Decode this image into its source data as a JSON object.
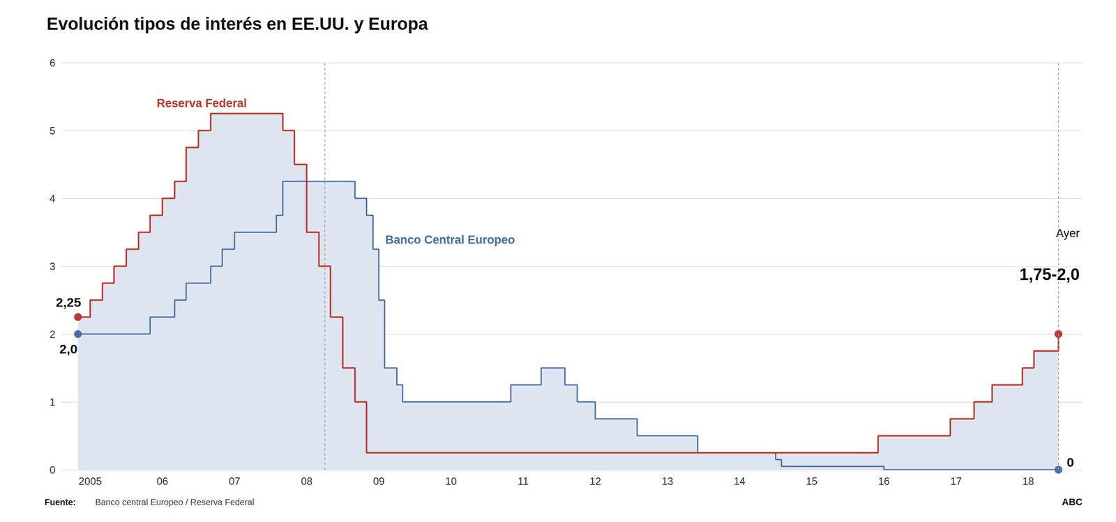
{
  "chart_data": {
    "type": "line",
    "title": "Evolución tipos de interés en EE.UU. y Europa",
    "series": [
      {
        "name": "Reserva Federal",
        "color": "#c0392b",
        "type": "step",
        "marker": "circle",
        "x": [
          2004.83,
          2005.0,
          2005.17,
          2005.33,
          2005.5,
          2005.67,
          2005.83,
          2006.0,
          2006.17,
          2006.33,
          2006.5,
          2006.67,
          2007.67,
          2007.83,
          2008.0,
          2008.17,
          2008.33,
          2008.5,
          2008.67,
          2008.83,
          2015.92,
          2016.92,
          2017.25,
          2017.5,
          2017.92,
          2018.08,
          2018.42
        ],
        "values": [
          2.25,
          2.5,
          2.75,
          3.0,
          3.25,
          3.5,
          3.75,
          4.0,
          4.25,
          4.75,
          5.0,
          5.25,
          5.0,
          4.5,
          3.5,
          3.0,
          2.25,
          1.5,
          1.0,
          0.25,
          0.5,
          0.75,
          1.0,
          1.25,
          1.5,
          1.75,
          2.0
        ],
        "value_labels": [
          "2,25",
          null,
          null,
          null,
          null,
          null,
          null,
          null,
          null,
          null,
          null,
          null,
          null,
          null,
          null,
          null,
          null,
          null,
          null,
          null,
          null,
          null,
          null,
          null,
          null,
          null,
          null
        ]
      },
      {
        "name": "Banco Central Europeo",
        "color": "#4a6fa5",
        "type": "step",
        "marker": "circle",
        "x": [
          2004.83,
          2005.67,
          2005.83,
          2006.17,
          2006.33,
          2006.67,
          2006.83,
          2007.0,
          2007.58,
          2007.67,
          2008.67,
          2008.83,
          2008.92,
          2009.0,
          2009.08,
          2009.25,
          2009.33,
          2010.83,
          2011.25,
          2011.58,
          2011.75,
          2012.0,
          2012.58,
          2013.42,
          2014.5,
          2014.58,
          2016.0,
          2018.42
        ],
        "values": [
          2.0,
          2.0,
          2.25,
          2.5,
          2.75,
          3.0,
          3.25,
          3.5,
          3.75,
          4.25,
          4.0,
          3.75,
          3.25,
          2.5,
          1.5,
          1.25,
          1.0,
          1.25,
          1.5,
          1.25,
          1.0,
          0.75,
          0.5,
          0.25,
          0.15,
          0.05,
          0.0,
          0.0
        ],
        "value_labels": [
          "2,0",
          null,
          null,
          null,
          null,
          null,
          null,
          null,
          null,
          null,
          null,
          null,
          null,
          null,
          null,
          null,
          null,
          null,
          null,
          null,
          null,
          null,
          null,
          null,
          null,
          null,
          null,
          "0"
        ]
      }
    ],
    "fill_color": "#dde6f0",
    "reference_lines": [
      2008.25,
      2018.42
    ],
    "xlim": [
      2004.6,
      2018.75
    ],
    "xticks": [
      2005,
      {
        "value": 2006,
        "label": "06"
      },
      {
        "value": 2007,
        "label": "07"
      },
      {
        "value": 2008,
        "label": "08"
      },
      {
        "value": 2009,
        "label": "09"
      },
      {
        "value": 2010,
        "label": "10"
      },
      {
        "value": 2011,
        "label": "11"
      },
      {
        "value": 2012,
        "label": "12"
      },
      {
        "value": 2013,
        "label": "13"
      },
      {
        "value": 2014,
        "label": "14"
      },
      {
        "value": 2015,
        "label": "15"
      },
      {
        "value": 2016,
        "label": "16"
      },
      {
        "value": 2017,
        "label": "17"
      },
      {
        "value": 2018,
        "label": "18"
      }
    ],
    "ylim": [
      0,
      6
    ],
    "yticks": [
      0,
      1,
      2,
      3,
      4,
      5,
      6
    ],
    "grid": "y",
    "annotations": [
      "Ayer",
      "1,75-2,0",
      "Fuente:",
      "Banco central Europeo / Reserva Federal",
      "ABC"
    ]
  }
}
